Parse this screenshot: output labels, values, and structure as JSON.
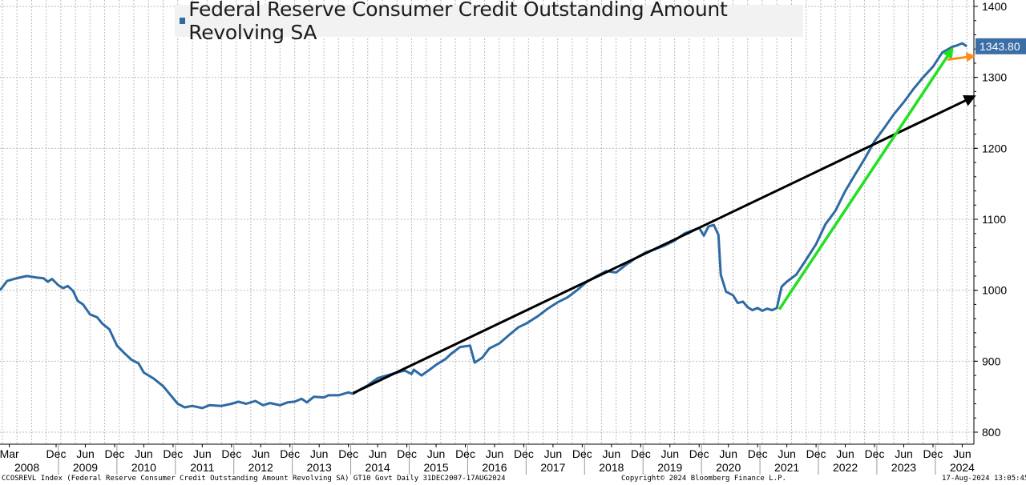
{
  "title": "Federal Reserve Consumer Credit Outstanding Amount Revolving SA",
  "last_value_label": "1343.80",
  "series_color": "#2e6aa3",
  "colors": {
    "trend_black": "#000000",
    "trend_green": "#22e022",
    "trend_orange": "#ff8c1a"
  },
  "footer": {
    "left": "CCOSREVL Index (Federal Reserve Consumer Credit Outstanding Amount Revolving SA) GT10  Govt  Daily 31DEC2007-17AUG2024",
    "center": "Copyright© 2024 Bloomberg Finance L.P.",
    "right": "17-Aug-2024 13:05:45"
  },
  "chart_data": {
    "type": "line",
    "title": "Federal Reserve Consumer Credit Outstanding Amount Revolving SA",
    "ylim": [
      780,
      1400
    ],
    "xlim": [
      2007.96,
      2024.62
    ],
    "grid": true,
    "y_ticks": [
      800,
      900,
      1000,
      1100,
      1200,
      1300,
      1400
    ],
    "x_month_ticks": [
      {
        "label": "Mar",
        "x": 2008.12
      },
      {
        "label": "Dec",
        "x": 2008.92
      },
      {
        "label": "Jun",
        "x": 2009.42
      },
      {
        "label": "Dec",
        "x": 2009.92
      },
      {
        "label": "Jun",
        "x": 2010.42
      },
      {
        "label": "Dec",
        "x": 2010.92
      },
      {
        "label": "Jun",
        "x": 2011.42
      },
      {
        "label": "Dec",
        "x": 2011.92
      },
      {
        "label": "Jun",
        "x": 2012.42
      },
      {
        "label": "Dec",
        "x": 2012.92
      },
      {
        "label": "Jun",
        "x": 2013.42
      },
      {
        "label": "Dec",
        "x": 2013.92
      },
      {
        "label": "Jun",
        "x": 2014.42
      },
      {
        "label": "Dec",
        "x": 2014.92
      },
      {
        "label": "Jun",
        "x": 2015.42
      },
      {
        "label": "Dec",
        "x": 2015.92
      },
      {
        "label": "Jun",
        "x": 2016.42
      },
      {
        "label": "Dec",
        "x": 2016.92
      },
      {
        "label": "Jun",
        "x": 2017.42
      },
      {
        "label": "Dec",
        "x": 2017.92
      },
      {
        "label": "Jun",
        "x": 2018.42
      },
      {
        "label": "Dec",
        "x": 2018.92
      },
      {
        "label": "Jun",
        "x": 2019.42
      },
      {
        "label": "Dec",
        "x": 2019.92
      },
      {
        "label": "Jun",
        "x": 2020.42
      },
      {
        "label": "Dec",
        "x": 2020.92
      },
      {
        "label": "Jun",
        "x": 2021.42
      },
      {
        "label": "Dec",
        "x": 2021.92
      },
      {
        "label": "Jun",
        "x": 2022.42
      },
      {
        "label": "Dec",
        "x": 2022.92
      },
      {
        "label": "Jun",
        "x": 2023.42
      },
      {
        "label": "Dec",
        "x": 2023.92
      },
      {
        "label": "Jun",
        "x": 2024.42
      }
    ],
    "x_year_labels": [
      {
        "label": "2008",
        "x": 2008.42
      },
      {
        "label": "2009",
        "x": 2009.42
      },
      {
        "label": "2010",
        "x": 2010.42
      },
      {
        "label": "2011",
        "x": 2011.42
      },
      {
        "label": "2012",
        "x": 2012.42
      },
      {
        "label": "2013",
        "x": 2013.42
      },
      {
        "label": "2014",
        "x": 2014.42
      },
      {
        "label": "2015",
        "x": 2015.42
      },
      {
        "label": "2016",
        "x": 2016.42
      },
      {
        "label": "2017",
        "x": 2017.42
      },
      {
        "label": "2018",
        "x": 2018.42
      },
      {
        "label": "2019",
        "x": 2019.42
      },
      {
        "label": "2020",
        "x": 2020.42
      },
      {
        "label": "2021",
        "x": 2021.42
      },
      {
        "label": "2022",
        "x": 2022.42
      },
      {
        "label": "2023",
        "x": 2023.42
      },
      {
        "label": "2024",
        "x": 2024.42
      }
    ],
    "series": [
      {
        "name": "Federal Reserve Consumer Credit Outstanding Amount Revolving SA",
        "last_value": 1343.8,
        "points": [
          [
            2007.96,
            1000
          ],
          [
            2008.08,
            1013
          ],
          [
            2008.25,
            1017
          ],
          [
            2008.42,
            1020
          ],
          [
            2008.58,
            1018
          ],
          [
            2008.7,
            1017
          ],
          [
            2008.78,
            1012
          ],
          [
            2008.85,
            1016
          ],
          [
            2008.96,
            1007
          ],
          [
            2009.04,
            1003
          ],
          [
            2009.12,
            1006
          ],
          [
            2009.21,
            999
          ],
          [
            2009.29,
            985
          ],
          [
            2009.38,
            980
          ],
          [
            2009.5,
            966
          ],
          [
            2009.62,
            962
          ],
          [
            2009.71,
            953
          ],
          [
            2009.83,
            945
          ],
          [
            2009.96,
            922
          ],
          [
            2010.08,
            912
          ],
          [
            2010.21,
            902
          ],
          [
            2010.33,
            897
          ],
          [
            2010.42,
            884
          ],
          [
            2010.58,
            876
          ],
          [
            2010.75,
            865
          ],
          [
            2010.88,
            852
          ],
          [
            2011.0,
            840
          ],
          [
            2011.12,
            835
          ],
          [
            2011.25,
            837
          ],
          [
            2011.42,
            834
          ],
          [
            2011.54,
            838
          ],
          [
            2011.75,
            837
          ],
          [
            2011.92,
            840
          ],
          [
            2012.04,
            843
          ],
          [
            2012.17,
            840
          ],
          [
            2012.33,
            844
          ],
          [
            2012.46,
            838
          ],
          [
            2012.58,
            841
          ],
          [
            2012.75,
            838
          ],
          [
            2012.88,
            842
          ],
          [
            2013.0,
            843
          ],
          [
            2013.12,
            847
          ],
          [
            2013.21,
            842
          ],
          [
            2013.33,
            850
          ],
          [
            2013.5,
            849
          ],
          [
            2013.58,
            852
          ],
          [
            2013.75,
            852
          ],
          [
            2013.92,
            856
          ],
          [
            2014.0,
            854
          ],
          [
            2014.12,
            860
          ],
          [
            2014.25,
            866
          ],
          [
            2014.42,
            876
          ],
          [
            2014.58,
            880
          ],
          [
            2014.75,
            884
          ],
          [
            2014.88,
            887
          ],
          [
            2015.0,
            882
          ],
          [
            2015.04,
            888
          ],
          [
            2015.17,
            880
          ],
          [
            2015.29,
            887
          ],
          [
            2015.42,
            895
          ],
          [
            2015.58,
            903
          ],
          [
            2015.67,
            910
          ],
          [
            2015.83,
            920
          ],
          [
            2016.0,
            922
          ],
          [
            2016.08,
            898
          ],
          [
            2016.21,
            905
          ],
          [
            2016.33,
            918
          ],
          [
            2016.5,
            925
          ],
          [
            2016.67,
            937
          ],
          [
            2016.83,
            948
          ],
          [
            2016.96,
            953
          ],
          [
            2017.17,
            964
          ],
          [
            2017.33,
            974
          ],
          [
            2017.5,
            983
          ],
          [
            2017.67,
            990
          ],
          [
            2017.83,
            1000
          ],
          [
            2018.0,
            1012
          ],
          [
            2018.17,
            1020
          ],
          [
            2018.33,
            1027
          ],
          [
            2018.5,
            1025
          ],
          [
            2018.67,
            1036
          ],
          [
            2018.83,
            1045
          ],
          [
            2019.0,
            1053
          ],
          [
            2019.17,
            1058
          ],
          [
            2019.33,
            1063
          ],
          [
            2019.5,
            1070
          ],
          [
            2019.67,
            1080
          ],
          [
            2019.83,
            1085
          ],
          [
            2019.92,
            1088
          ],
          [
            2020.0,
            1077
          ],
          [
            2020.08,
            1090
          ],
          [
            2020.17,
            1092
          ],
          [
            2020.25,
            1078
          ],
          [
            2020.29,
            1022
          ],
          [
            2020.38,
            998
          ],
          [
            2020.5,
            993
          ],
          [
            2020.58,
            982
          ],
          [
            2020.67,
            984
          ],
          [
            2020.75,
            976
          ],
          [
            2020.83,
            972
          ],
          [
            2020.92,
            975
          ],
          [
            2021.0,
            971
          ],
          [
            2021.08,
            974
          ],
          [
            2021.17,
            972
          ],
          [
            2021.25,
            975
          ],
          [
            2021.33,
            1005
          ],
          [
            2021.42,
            1012
          ],
          [
            2021.58,
            1022
          ],
          [
            2021.75,
            1043
          ],
          [
            2021.92,
            1065
          ],
          [
            2022.08,
            1093
          ],
          [
            2022.25,
            1112
          ],
          [
            2022.42,
            1140
          ],
          [
            2022.58,
            1162
          ],
          [
            2022.75,
            1185
          ],
          [
            2022.92,
            1210
          ],
          [
            2023.08,
            1228
          ],
          [
            2023.25,
            1248
          ],
          [
            2023.42,
            1265
          ],
          [
            2023.58,
            1283
          ],
          [
            2023.75,
            1300
          ],
          [
            2023.92,
            1315
          ],
          [
            2024.08,
            1335
          ],
          [
            2024.25,
            1343
          ],
          [
            2024.33,
            1345
          ],
          [
            2024.42,
            1348
          ],
          [
            2024.5,
            1343.8
          ]
        ]
      }
    ],
    "annotations": [
      {
        "type": "arrow",
        "color": "black",
        "from": [
          2014.0,
          855
        ],
        "to": [
          2024.62,
          1273
        ]
      },
      {
        "type": "arrow",
        "color": "green",
        "from": [
          2021.29,
          973
        ],
        "to": [
          2024.25,
          1340
        ]
      },
      {
        "type": "arrow",
        "color": "orange",
        "from": [
          2024.17,
          1325
        ],
        "to": [
          2024.62,
          1330
        ]
      }
    ]
  }
}
